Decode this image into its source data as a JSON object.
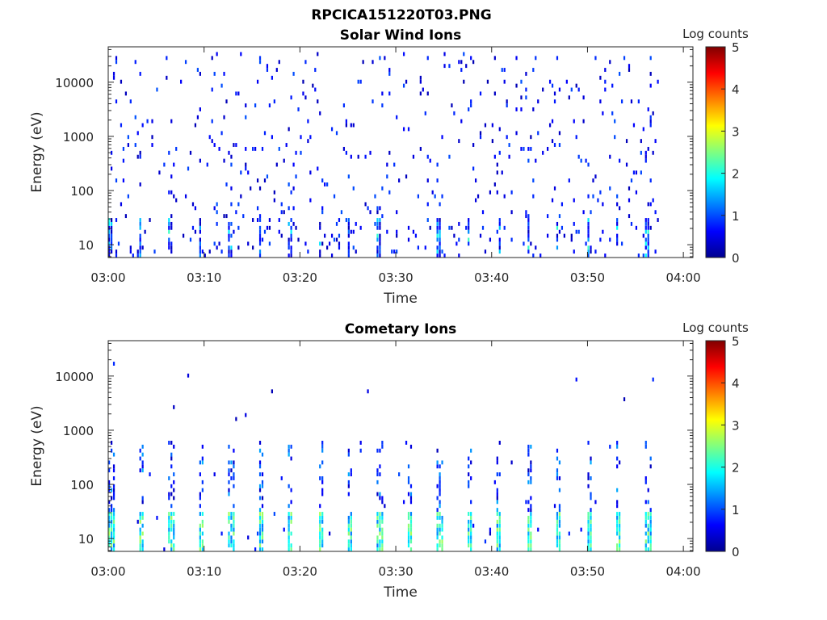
{
  "figure_title": "RPCICA151220T03.PNG",
  "chart_data": [
    {
      "type": "heatmap",
      "title": "Solar Wind Ions",
      "xlabel": "Time",
      "ylabel": "Energy (eV)",
      "x_ticks": [
        "03:00",
        "03:10",
        "03:20",
        "03:30",
        "03:40",
        "03:50",
        "04:00"
      ],
      "xlim": [
        "03:00",
        "04:01"
      ],
      "y_scale": "log",
      "y_ticks": [
        10,
        100,
        1000,
        10000
      ],
      "y_tick_labels": [
        "10",
        "100",
        "1000",
        "10000"
      ],
      "ylim": [
        5.8,
        45000
      ],
      "colorbar": {
        "label": "Log counts",
        "range": [
          0,
          5
        ],
        "ticks": [
          "0",
          "1",
          "2",
          "3",
          "4",
          "5"
        ],
        "colormap": "jet"
      },
      "description_of_data": "sparse low-count (0–1 log counts) speckle across all energies 10 eV–40 keV; denser vertical streaks below ~30 eV with occasional values up to ~2"
    },
    {
      "type": "heatmap",
      "title": "Cometary Ions",
      "xlabel": "Time",
      "ylabel": "Energy (eV)",
      "x_ticks": [
        "03:00",
        "03:10",
        "03:20",
        "03:30",
        "03:40",
        "03:50",
        "04:00"
      ],
      "xlim": [
        "03:00",
        "04:01"
      ],
      "y_scale": "log",
      "y_ticks": [
        10,
        100,
        1000,
        10000
      ],
      "y_tick_labels": [
        "10",
        "100",
        "1000",
        "10000"
      ],
      "ylim": [
        5.8,
        45000
      ],
      "colorbar": {
        "label": "Log counts",
        "range": [
          0,
          5
        ],
        "ticks": [
          "0",
          "1",
          "2",
          "3",
          "4",
          "5"
        ],
        "colormap": "jet"
      },
      "description_of_data": "periodic vertical streaks every ~3.3 min at energies below ~30 eV with values up to ~2.5 log counts; fingers extending to several hundred eV; sparse points above 1 keV"
    }
  ]
}
